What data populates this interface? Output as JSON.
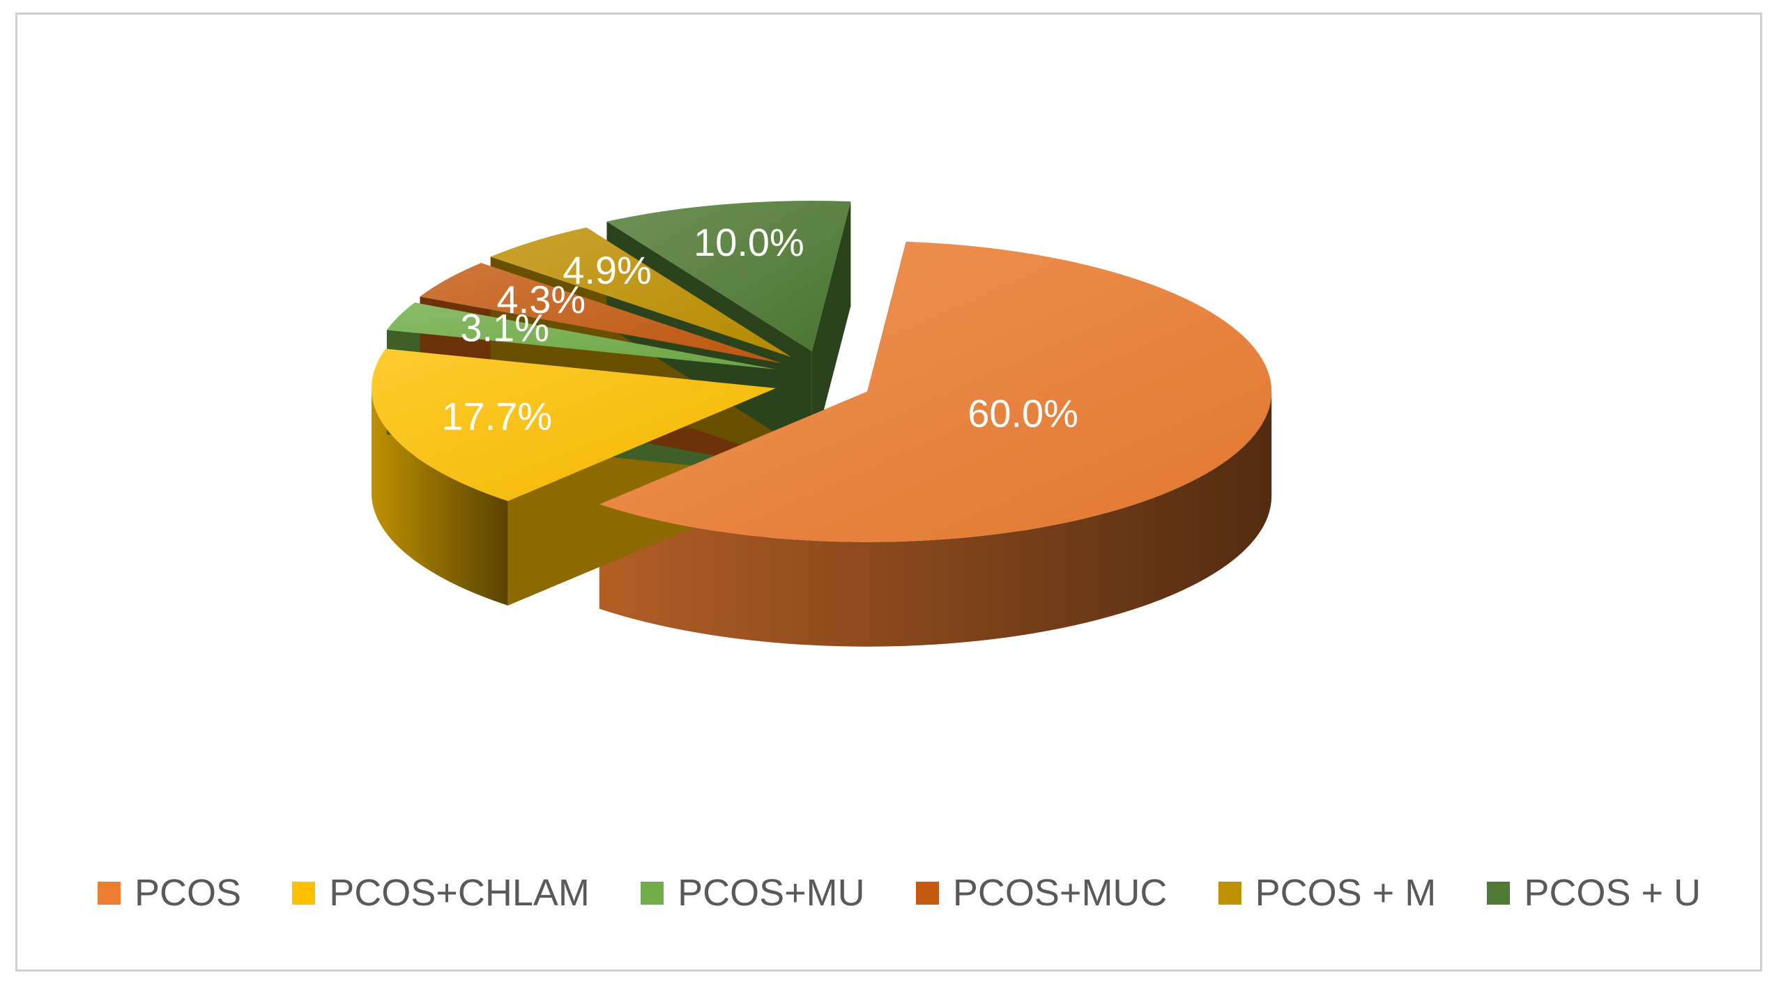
{
  "chart_data": {
    "type": "pie",
    "style": "3d-exploded",
    "title": "",
    "legend_position": "bottom",
    "slices": [
      {
        "name": "PCOS",
        "value": 60.0,
        "label": "60.0%",
        "color": "#ED7D31"
      },
      {
        "name": "PCOS+CHLAM",
        "value": 17.7,
        "label": "17.7%",
        "color": "#FFC000"
      },
      {
        "name": "PCOS+MU",
        "value": 3.1,
        "label": "3.1%",
        "color": "#70AD47"
      },
      {
        "name": "PCOS+MUC",
        "value": 4.3,
        "label": "4.3%",
        "color": "#C55A11"
      },
      {
        "name": "PCOS + M",
        "value": 4.9,
        "label": "4.9%",
        "color": "#BF9000"
      },
      {
        "name": "PCOS + U",
        "value": 10.0,
        "label": "10.0%",
        "color": "#4E7A33"
      }
    ]
  }
}
